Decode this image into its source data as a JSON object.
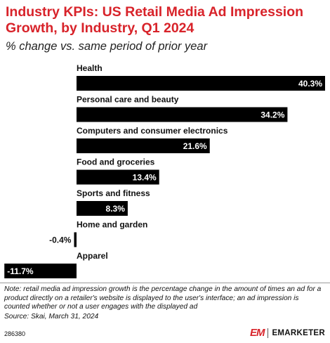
{
  "header": {
    "title": "Industry KPIs: US Retail Media Ad Impression Growth, by Industry, Q1 2024",
    "subtitle": "% change vs. same period of prior year"
  },
  "chart_data": {
    "type": "bar",
    "orientation": "horizontal",
    "categories": [
      "Health",
      "Personal care and beauty",
      "Computers and consumer electronics",
      "Food and groceries",
      "Sports and fitness",
      "Home and garden",
      "Apparel"
    ],
    "values": [
      40.3,
      34.2,
      21.6,
      13.4,
      8.3,
      -0.4,
      -11.7
    ],
    "labels": [
      "40.3%",
      "34.2%",
      "21.6%",
      "13.4%",
      "8.3%",
      "-0.4%",
      "-11.7%"
    ],
    "unit": "%",
    "bar_color": "#000000",
    "xlim": [
      -11.7,
      40.3
    ],
    "grid": false,
    "legend": "none"
  },
  "footer": {
    "note": "Note: retail media ad impression growth is the percentage change in the amount of times an ad for a product directly on a retailer's website is displayed to the user's interface; an ad impression is counted whether or not a user engages with the displayed ad",
    "source": "Source: Skai, March 31, 2024",
    "chart_id": "286380",
    "brand_logo": "EM",
    "brand_name": "EMARKETER",
    "brand_color": "#d8232a"
  }
}
